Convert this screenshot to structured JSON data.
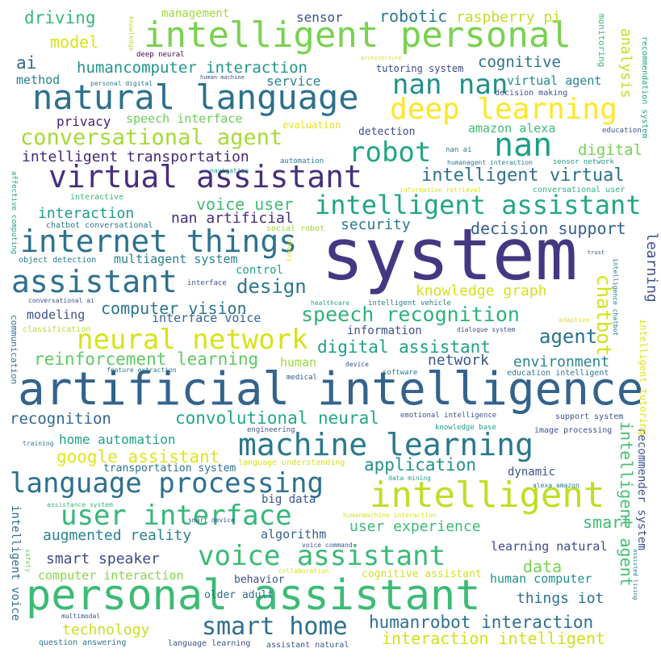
{
  "words": [
    {
      "text": "system",
      "color": "#453781"
    },
    {
      "text": "artificial intelligence",
      "color": "#33638d"
    },
    {
      "text": "personal assistant",
      "color": "#3cbb75"
    },
    {
      "text": "intelligent personal",
      "color": "#7ad151"
    },
    {
      "text": "intelligent",
      "color": "#bddf26"
    },
    {
      "text": "machine learning",
      "color": "#2a788e"
    },
    {
      "text": "natural language",
      "color": "#2d708e"
    },
    {
      "text": "virtual assistant",
      "color": "#472f7d"
    },
    {
      "text": "internet things",
      "color": "#2c728e"
    },
    {
      "text": "assistant",
      "color": "#2d708e"
    },
    {
      "text": "nan",
      "color": "#1f9e89"
    },
    {
      "text": "deep learning",
      "color": "#fde725"
    },
    {
      "text": "nan nan",
      "color": "#21908d"
    },
    {
      "text": "robot",
      "color": "#22a785"
    },
    {
      "text": "language processing",
      "color": "#2d708e"
    },
    {
      "text": "neural network",
      "color": "#d8e219"
    },
    {
      "text": "user interface",
      "color": "#35b779"
    },
    {
      "text": "voice assistant",
      "color": "#3aba76"
    },
    {
      "text": "intelligent assistant",
      "color": "#21a685"
    },
    {
      "text": "conversational agent",
      "color": "#a5db36"
    },
    {
      "text": "smart home",
      "color": "#2e6f8e"
    },
    {
      "text": "speech recognition",
      "color": "#2db27d"
    },
    {
      "text": "design",
      "color": "#2a788e"
    },
    {
      "text": "agent",
      "color": "#2c728e"
    },
    {
      "text": "chatbot",
      "color": "#d2e21b"
    },
    {
      "text": "intelligent agent",
      "color": "#44bf70"
    },
    {
      "text": "intelligent virtual",
      "color": "#2d718e"
    },
    {
      "text": "reinforcement learning",
      "color": "#5ec962"
    },
    {
      "text": "convolutional neural",
      "color": "#22a884"
    },
    {
      "text": "digital assistant",
      "color": "#1fa187"
    },
    {
      "text": "google assistant",
      "color": "#e2e418"
    },
    {
      "text": "application",
      "color": "#20928c"
    },
    {
      "text": "humanrobot interaction",
      "color": "#2d708e"
    },
    {
      "text": "interaction intelligent",
      "color": "#d0e11c"
    },
    {
      "text": "computer vision",
      "color": "#2a768e"
    },
    {
      "text": "voice user",
      "color": "#3fbc73"
    },
    {
      "text": "decision support",
      "color": "#355f8d"
    },
    {
      "text": "knowledge graph",
      "color": "#d5e21a"
    },
    {
      "text": "user experience",
      "color": "#3bbb75"
    },
    {
      "text": "smart",
      "color": "#3dbc74"
    },
    {
      "text": "data",
      "color": "#77d153"
    },
    {
      "text": "augmented reality",
      "color": "#26828e"
    },
    {
      "text": "smart speaker",
      "color": "#3e4989"
    },
    {
      "text": "recognition",
      "color": "#31688e"
    },
    {
      "text": "environment",
      "color": "#25848e"
    },
    {
      "text": "network",
      "color": "#39568c"
    },
    {
      "text": "things iot",
      "color": "#2c728e"
    },
    {
      "text": "technology",
      "color": "#c8e020"
    },
    {
      "text": "humancomputer interaction",
      "color": "#1f968b"
    },
    {
      "text": "intelligent transportation",
      "color": "#482878"
    },
    {
      "text": "digital",
      "color": "#75d054"
    },
    {
      "text": "interaction",
      "color": "#1e9c89"
    },
    {
      "text": "nan artificial",
      "color": "#472d7b"
    },
    {
      "text": "security",
      "color": "#2a788e"
    },
    {
      "text": "home automation",
      "color": "#1fa088"
    },
    {
      "text": "computer interaction",
      "color": "#86d549"
    },
    {
      "text": "learning natural",
      "color": "#3e4989"
    },
    {
      "text": "human computer",
      "color": "#21918c"
    },
    {
      "text": "analysis",
      "color": "#c2df23"
    },
    {
      "text": "cognitive",
      "color": "#2d718e"
    },
    {
      "text": "model",
      "color": "#dae319"
    },
    {
      "text": "driving",
      "color": "#35b779"
    },
    {
      "text": "robotic",
      "color": "#2a788e"
    },
    {
      "text": "raspberry pi",
      "color": "#bddf26"
    },
    {
      "text": "sensor",
      "color": "#3b518b"
    },
    {
      "text": "ai",
      "color": "#31688e"
    },
    {
      "text": "service",
      "color": "#26828e"
    },
    {
      "text": "privacy",
      "color": "#482071"
    },
    {
      "text": "virtual agent",
      "color": "#23888e"
    },
    {
      "text": "amazon alexa",
      "color": "#3dbc74"
    },
    {
      "text": "method",
      "color": "#26828e"
    },
    {
      "text": "speech interface",
      "color": "#6ccd5a"
    },
    {
      "text": "interface voice",
      "color": "#33638d"
    },
    {
      "text": "modeling",
      "color": "#3b528b"
    },
    {
      "text": "multiagent system",
      "color": "#27808e"
    },
    {
      "text": "human",
      "color": "#9bd93c"
    },
    {
      "text": "control",
      "color": "#20a486"
    },
    {
      "text": "information",
      "color": "#3b518b"
    },
    {
      "text": "transportation system",
      "color": "#2c728e"
    },
    {
      "text": "algorithm",
      "color": "#355f8d"
    },
    {
      "text": "behavior",
      "color": "#3b518b"
    },
    {
      "text": "older adult",
      "color": "#2d708e"
    },
    {
      "text": "big data",
      "color": "#3b528b"
    },
    {
      "text": "dynamic",
      "color": "#3b528b"
    },
    {
      "text": "learning",
      "color": "#3b528b"
    },
    {
      "text": "recommender system",
      "color": "#3b528b"
    },
    {
      "text": "intelligent voice",
      "color": "#2d708e"
    },
    {
      "text": "management",
      "color": "#a0da39"
    },
    {
      "text": "tutoring system",
      "color": "#3e4989"
    },
    {
      "text": "detection",
      "color": "#3e4989"
    },
    {
      "text": "evaluation",
      "color": "#e5e419"
    },
    {
      "text": "cognitive assistant",
      "color": "#d2e21b"
    },
    {
      "text": "monitoring",
      "color": "#3aba76"
    },
    {
      "text": "recommendation system",
      "color": "#20a486"
    },
    {
      "text": "intelligent tutoring",
      "color": "#e2e418"
    },
    {
      "text": "communication",
      "color": "#2d718e"
    },
    {
      "text": "affective computing",
      "color": "#1fa187"
    },
    {
      "text": "knowledge",
      "color": "#b5de2b"
    },
    {
      "text": "deep neural",
      "color": "#450457"
    },
    {
      "text": "personal digital",
      "color": "#2a788e"
    },
    {
      "text": "human machine",
      "color": "#3b528b"
    },
    {
      "text": "architecture",
      "color": "#d8e219"
    },
    {
      "text": "decision making",
      "color": "#3b528b"
    },
    {
      "text": "education",
      "color": "#3b528b"
    },
    {
      "text": "nan ai",
      "color": "#2a788e"
    },
    {
      "text": "humanagent interaction",
      "color": "#2a788e"
    },
    {
      "text": "sensor network",
      "color": "#1f9e89"
    },
    {
      "text": "automation",
      "color": "#2a788e"
    },
    {
      "text": "navigation",
      "color": "#1f9e89"
    },
    {
      "text": "information retrieval",
      "color": "#d8e219"
    },
    {
      "text": "conversational user",
      "color": "#2fb47c"
    },
    {
      "text": "interactive",
      "color": "#35b779"
    },
    {
      "text": "chatbot conversational",
      "color": "#2a788e"
    },
    {
      "text": "social robot",
      "color": "#9fda3a"
    },
    {
      "text": "object detection",
      "color": "#2a788e"
    },
    {
      "text": "theory",
      "color": "#e5e419"
    },
    {
      "text": "trust",
      "color": "#3b528b"
    },
    {
      "text": "intelligence chatbot",
      "color": "#2a788e"
    },
    {
      "text": "interface",
      "color": "#3b528b"
    },
    {
      "text": "conversational ai",
      "color": "#3b528b"
    },
    {
      "text": "healthcare",
      "color": "#20a486"
    },
    {
      "text": "intelligent vehicle",
      "color": "#2a788e"
    },
    {
      "text": "adaptive",
      "color": "#d8e219"
    },
    {
      "text": "classification",
      "color": "#b5de2b"
    },
    {
      "text": "dialogue system",
      "color": "#3b528b"
    },
    {
      "text": "feature extraction",
      "color": "#2a788e"
    },
    {
      "text": "device",
      "color": "#3b528b"
    },
    {
      "text": "software",
      "color": "#2a788e"
    },
    {
      "text": "medical",
      "color": "#3b528b"
    },
    {
      "text": "education intelligent",
      "color": "#2a788e"
    },
    {
      "text": "emotional intelligence",
      "color": "#3b528b"
    },
    {
      "text": "support system",
      "color": "#3b528b"
    },
    {
      "text": "training",
      "color": "#2a788e"
    },
    {
      "text": "engineering",
      "color": "#3b528b"
    },
    {
      "text": "knowledge base",
      "color": "#1f9e89"
    },
    {
      "text": "image processing",
      "color": "#3b528b"
    },
    {
      "text": "language understanding",
      "color": "#d8e219"
    },
    {
      "text": "data mining",
      "color": "#1f9e89"
    },
    {
      "text": "alexa amazon",
      "color": "#2a788e"
    },
    {
      "text": "assistance system",
      "color": "#35b779"
    },
    {
      "text": "smart device",
      "color": "#3b528b"
    },
    {
      "text": "humanmachine interaction",
      "color": "#d8e219"
    },
    {
      "text": "safety",
      "color": "#6ccd5a"
    },
    {
      "text": "voice command",
      "color": "#3b528b"
    },
    {
      "text": "collaboration",
      "color": "#d8e219"
    },
    {
      "text": "assisted living",
      "color": "#2a788e"
    },
    {
      "text": "multimodal",
      "color": "#3b528b"
    },
    {
      "text": "question answering",
      "color": "#2a788e"
    },
    {
      "text": "language learning",
      "color": "#3b528b"
    },
    {
      "text": "assistant natural",
      "color": "#3b528b"
    }
  ]
}
